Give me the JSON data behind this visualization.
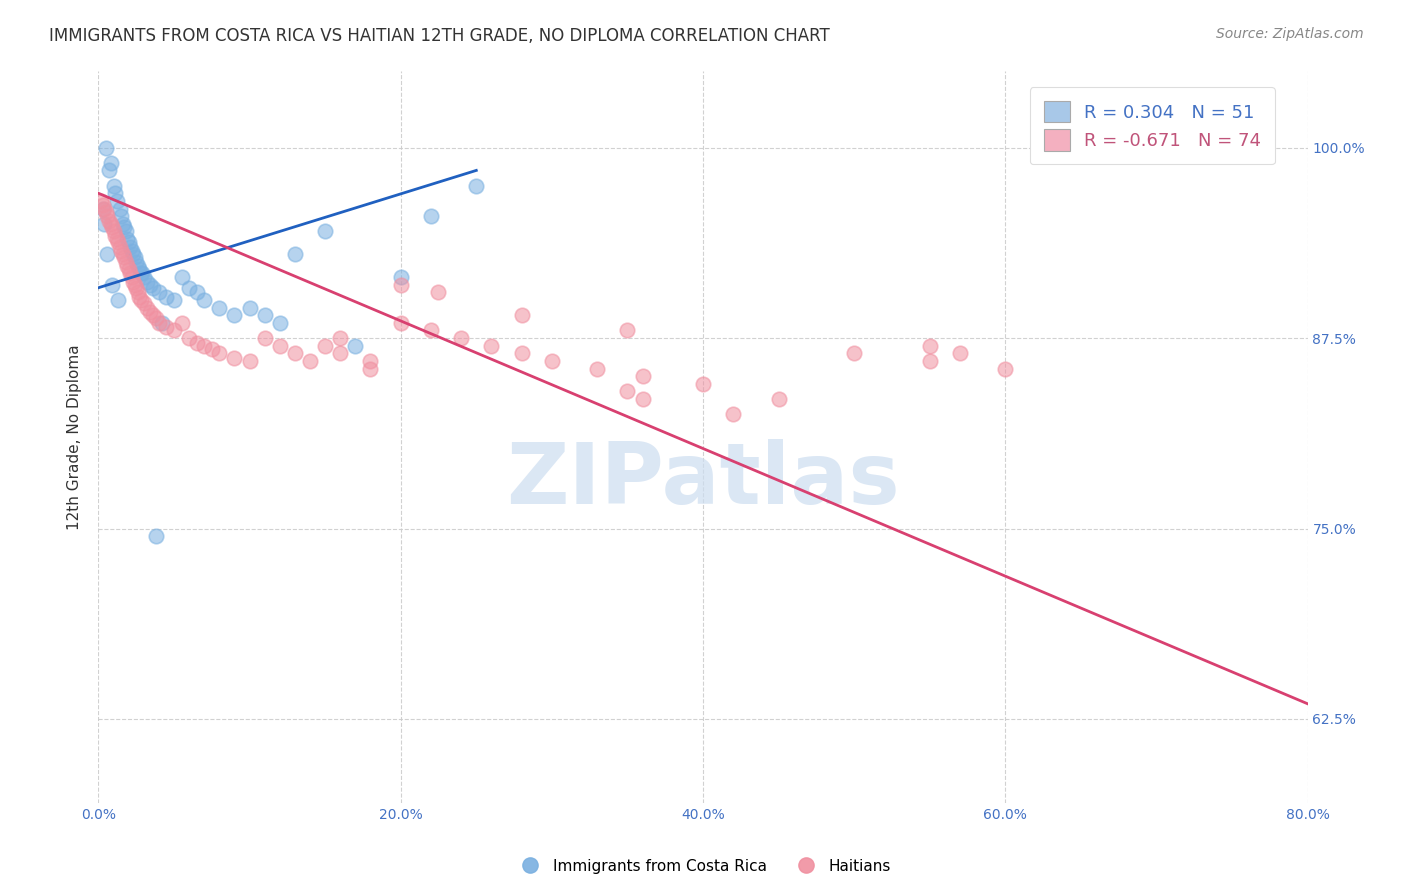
{
  "title": "IMMIGRANTS FROM COSTA RICA VS HAITIAN 12TH GRADE, NO DIPLOMA CORRELATION CHART",
  "source": "Source: ZipAtlas.com",
  "ylabel": "12th Grade, No Diploma",
  "xlabel_vals": [
    0.0,
    20.0,
    40.0,
    60.0,
    80.0
  ],
  "ylabel_vals": [
    62.5,
    75.0,
    87.5,
    100.0
  ],
  "xlim": [
    0.0,
    80.0
  ],
  "ylim": [
    57.0,
    105.0
  ],
  "legend_r_colors": [
    "#4472c4",
    "#c0547a"
  ],
  "legend_entry1": "R = 0.304   N = 51",
  "legend_entry2": "R = -0.671   N = 74",
  "legend_face1": "#a8c8e8",
  "legend_face2": "#f4b0c0",
  "costa_rica_dots_x": [
    0.3,
    0.5,
    0.7,
    0.8,
    1.0,
    1.1,
    1.2,
    1.4,
    1.5,
    1.6,
    1.7,
    1.8,
    1.9,
    2.0,
    2.1,
    2.2,
    2.3,
    2.4,
    2.5,
    2.6,
    2.7,
    2.8,
    3.0,
    3.2,
    3.4,
    3.6,
    4.0,
    4.5,
    5.0,
    5.5,
    6.0,
    6.5,
    7.0,
    8.0,
    9.0,
    10.0,
    11.0,
    12.0,
    13.0,
    15.0,
    17.0,
    20.0,
    22.0,
    25.0,
    0.4,
    0.6,
    0.9,
    1.3,
    2.9,
    4.2,
    3.8
  ],
  "costa_rica_dots_y": [
    96.0,
    100.0,
    98.5,
    99.0,
    97.5,
    97.0,
    96.5,
    96.0,
    95.5,
    95.0,
    94.8,
    94.5,
    94.0,
    93.8,
    93.5,
    93.2,
    93.0,
    92.8,
    92.5,
    92.2,
    92.0,
    91.8,
    91.5,
    91.2,
    91.0,
    90.8,
    90.5,
    90.2,
    90.0,
    91.5,
    90.8,
    90.5,
    90.0,
    89.5,
    89.0,
    89.5,
    89.0,
    88.5,
    93.0,
    94.5,
    87.0,
    91.5,
    95.5,
    97.5,
    95.0,
    93.0,
    91.0,
    90.0,
    91.8,
    88.5,
    74.5
  ],
  "haitian_dots_x": [
    0.2,
    0.3,
    0.4,
    0.5,
    0.6,
    0.7,
    0.8,
    0.9,
    1.0,
    1.1,
    1.2,
    1.3,
    1.4,
    1.5,
    1.6,
    1.7,
    1.8,
    1.9,
    2.0,
    2.1,
    2.2,
    2.3,
    2.4,
    2.5,
    2.6,
    2.7,
    2.8,
    3.0,
    3.2,
    3.4,
    3.6,
    3.8,
    4.0,
    4.5,
    5.0,
    5.5,
    6.0,
    6.5,
    7.0,
    7.5,
    8.0,
    9.0,
    10.0,
    11.0,
    12.0,
    13.0,
    14.0,
    15.0,
    16.0,
    18.0,
    20.0,
    22.0,
    24.0,
    26.0,
    28.0,
    30.0,
    33.0,
    36.0,
    40.0,
    45.0,
    20.0,
    22.5,
    28.0,
    35.0,
    50.0,
    55.0,
    60.0,
    35.0,
    36.0,
    42.0,
    16.0,
    18.0,
    55.0,
    57.0
  ],
  "haitian_dots_y": [
    96.5,
    96.2,
    96.0,
    95.8,
    95.5,
    95.2,
    95.0,
    94.8,
    94.5,
    94.2,
    94.0,
    93.8,
    93.5,
    93.2,
    93.0,
    92.8,
    92.5,
    92.2,
    92.0,
    91.8,
    91.5,
    91.2,
    91.0,
    90.8,
    90.5,
    90.2,
    90.0,
    89.8,
    89.5,
    89.2,
    89.0,
    88.8,
    88.5,
    88.2,
    88.0,
    88.5,
    87.5,
    87.2,
    87.0,
    86.8,
    86.5,
    86.2,
    86.0,
    87.5,
    87.0,
    86.5,
    86.0,
    87.0,
    87.5,
    86.0,
    88.5,
    88.0,
    87.5,
    87.0,
    86.5,
    86.0,
    85.5,
    85.0,
    84.5,
    83.5,
    91.0,
    90.5,
    89.0,
    88.0,
    86.5,
    86.0,
    85.5,
    84.0,
    83.5,
    82.5,
    86.5,
    85.5,
    87.0,
    86.5
  ],
  "costa_rica_line_x": [
    0.0,
    25.0
  ],
  "costa_rica_line_y": [
    90.8,
    98.5
  ],
  "haitian_line_x": [
    0.0,
    80.0
  ],
  "haitian_line_y": [
    97.0,
    63.5
  ],
  "dot_size": 110,
  "dot_alpha": 0.55,
  "line_width": 2.0,
  "costa_rica_dot_color": "#7ab0e0",
  "haitian_dot_color": "#f090a0",
  "costa_rica_line_color": "#2060c0",
  "haitian_line_color": "#d84070",
  "background_color": "#ffffff",
  "grid_color": "#cccccc",
  "title_color": "#333333",
  "source_color": "#888888",
  "axis_label_color": "#333333",
  "tick_color": "#4472c4",
  "watermark_text": "ZIPatlas",
  "watermark_color": "#ccddf0",
  "title_fontsize": 12,
  "source_fontsize": 10,
  "ylabel_fontsize": 11,
  "tick_fontsize": 10
}
